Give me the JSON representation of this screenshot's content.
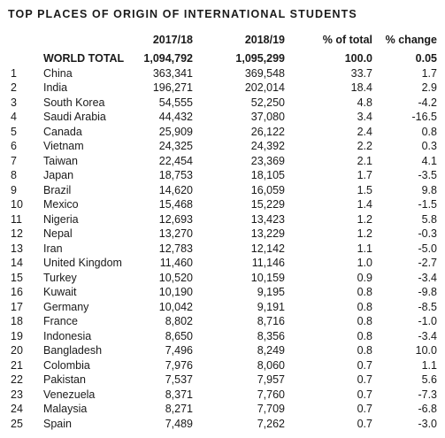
{
  "title": "TOP PLACES OF ORIGIN OF INTERNATIONAL STUDENTS",
  "columns": {
    "rank": "",
    "country": "",
    "y1": "2017/18",
    "y2": "2018/19",
    "pct": "% of total",
    "chg": "% change"
  },
  "total": {
    "label": "WORLD TOTAL",
    "y1": "1,094,792",
    "y2": "1,095,299",
    "pct": "100.0",
    "chg": "0.05"
  },
  "rows": [
    {
      "rank": "1",
      "country": "China",
      "y1": "363,341",
      "y2": "369,548",
      "pct": "33.7",
      "chg": "1.7"
    },
    {
      "rank": "2",
      "country": "India",
      "y1": "196,271",
      "y2": "202,014",
      "pct": "18.4",
      "chg": "2.9"
    },
    {
      "rank": "3",
      "country": "South Korea",
      "y1": "54,555",
      "y2": "52,250",
      "pct": "4.8",
      "chg": "-4.2"
    },
    {
      "rank": "4",
      "country": "Saudi Arabia",
      "y1": "44,432",
      "y2": "37,080",
      "pct": "3.4",
      "chg": "-16.5"
    },
    {
      "rank": "5",
      "country": "Canada",
      "y1": "25,909",
      "y2": "26,122",
      "pct": "2.4",
      "chg": "0.8"
    },
    {
      "rank": "6",
      "country": "Vietnam",
      "y1": "24,325",
      "y2": "24,392",
      "pct": "2.2",
      "chg": "0.3"
    },
    {
      "rank": "7",
      "country": "Taiwan",
      "y1": "22,454",
      "y2": "23,369",
      "pct": "2.1",
      "chg": "4.1"
    },
    {
      "rank": "8",
      "country": "Japan",
      "y1": "18,753",
      "y2": "18,105",
      "pct": "1.7",
      "chg": "-3.5"
    },
    {
      "rank": "9",
      "country": "Brazil",
      "y1": "14,620",
      "y2": "16,059",
      "pct": "1.5",
      "chg": "9.8"
    },
    {
      "rank": "10",
      "country": "Mexico",
      "y1": "15,468",
      "y2": "15,229",
      "pct": "1.4",
      "chg": "-1.5"
    },
    {
      "rank": "11",
      "country": "Nigeria",
      "y1": "12,693",
      "y2": "13,423",
      "pct": "1.2",
      "chg": "5.8"
    },
    {
      "rank": "12",
      "country": "Nepal",
      "y1": "13,270",
      "y2": "13,229",
      "pct": "1.2",
      "chg": "-0.3"
    },
    {
      "rank": "13",
      "country": "Iran",
      "y1": "12,783",
      "y2": "12,142",
      "pct": "1.1",
      "chg": "-5.0"
    },
    {
      "rank": "14",
      "country": "United Kingdom",
      "y1": "11,460",
      "y2": "11,146",
      "pct": "1.0",
      "chg": "-2.7"
    },
    {
      "rank": "15",
      "country": "Turkey",
      "y1": "10,520",
      "y2": "10,159",
      "pct": "0.9",
      "chg": "-3.4"
    },
    {
      "rank": "16",
      "country": "Kuwait",
      "y1": "10,190",
      "y2": "9,195",
      "pct": "0.8",
      "chg": "-9.8"
    },
    {
      "rank": "17",
      "country": "Germany",
      "y1": "10,042",
      "y2": "9,191",
      "pct": "0.8",
      "chg": "-8.5"
    },
    {
      "rank": "18",
      "country": "France",
      "y1": "8,802",
      "y2": "8,716",
      "pct": "0.8",
      "chg": "-1.0"
    },
    {
      "rank": "19",
      "country": "Indonesia",
      "y1": "8,650",
      "y2": "8,356",
      "pct": "0.8",
      "chg": "-3.4"
    },
    {
      "rank": "20",
      "country": "Bangladesh",
      "y1": "7,496",
      "y2": "8,249",
      "pct": "0.8",
      "chg": "10.0"
    },
    {
      "rank": "21",
      "country": "Colombia",
      "y1": "7,976",
      "y2": "8,060",
      "pct": "0.7",
      "chg": "1.1"
    },
    {
      "rank": "22",
      "country": "Pakistan",
      "y1": "7,537",
      "y2": "7,957",
      "pct": "0.7",
      "chg": "5.6"
    },
    {
      "rank": "23",
      "country": "Venezuela",
      "y1": "8,371",
      "y2": "7,760",
      "pct": "0.7",
      "chg": "-7.3"
    },
    {
      "rank": "24",
      "country": "Malaysia",
      "y1": "8,271",
      "y2": "7,709",
      "pct": "0.7",
      "chg": "-6.8"
    },
    {
      "rank": "25",
      "country": "Spain",
      "y1": "7,489",
      "y2": "7,262",
      "pct": "0.7",
      "chg": "-3.0"
    }
  ]
}
